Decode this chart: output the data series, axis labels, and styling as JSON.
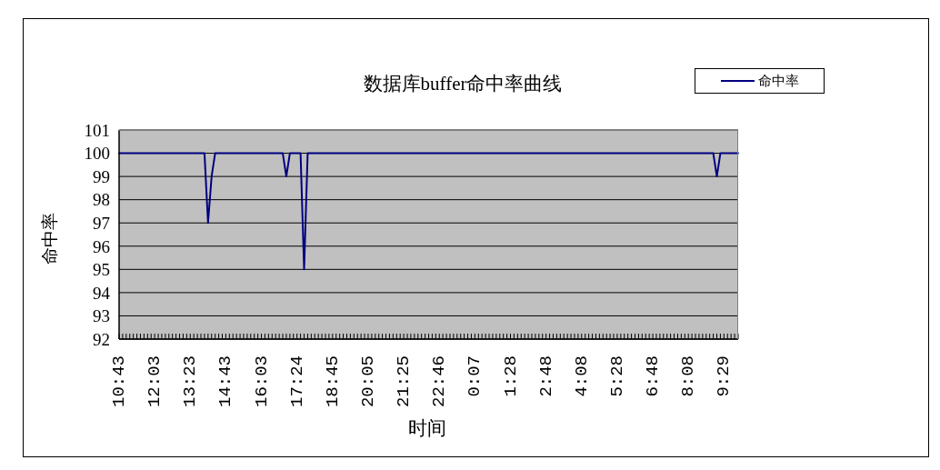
{
  "chart_data": {
    "type": "line",
    "title": "数据库buffer命中率曲线",
    "xlabel": "时间",
    "ylabel": "命中率",
    "categories": [
      "10:43",
      null,
      null,
      null,
      null,
      null,
      null,
      null,
      null,
      null,
      "12:03",
      null,
      null,
      null,
      null,
      null,
      null,
      null,
      null,
      null,
      "13:23",
      null,
      null,
      null,
      null,
      null,
      null,
      null,
      null,
      null,
      "14:43",
      null,
      null,
      null,
      null,
      null,
      null,
      null,
      null,
      null,
      "16:03",
      null,
      null,
      null,
      null,
      null,
      null,
      null,
      null,
      null,
      "17:24",
      null,
      null,
      null,
      null,
      null,
      null,
      null,
      null,
      null,
      "18:45",
      null,
      null,
      null,
      null,
      null,
      null,
      null,
      null,
      null,
      "20:05",
      null,
      null,
      null,
      null,
      null,
      null,
      null,
      null,
      null,
      "21:25",
      null,
      null,
      null,
      null,
      null,
      null,
      null,
      null,
      null,
      "22:46",
      null,
      null,
      null,
      null,
      null,
      null,
      null,
      null,
      null,
      "0:07",
      null,
      null,
      null,
      null,
      null,
      null,
      null,
      null,
      null,
      "1:28",
      null,
      null,
      null,
      null,
      null,
      null,
      null,
      null,
      null,
      "2:48",
      null,
      null,
      null,
      null,
      null,
      null,
      null,
      null,
      null,
      "4:08",
      null,
      null,
      null,
      null,
      null,
      null,
      null,
      null,
      null,
      "5:28",
      null,
      null,
      null,
      null,
      null,
      null,
      null,
      null,
      null,
      "6:48",
      null,
      null,
      null,
      null,
      null,
      null,
      null,
      null,
      null,
      "8:08",
      null,
      null,
      null,
      null,
      null,
      null,
      null,
      null,
      null,
      "9:29",
      null,
      null,
      null,
      null
    ],
    "series": [
      {
        "name": "命中率",
        "color": "#000080",
        "values": [
          100,
          100,
          100,
          100,
          100,
          100,
          100,
          100,
          100,
          100,
          100,
          100,
          100,
          100,
          100,
          100,
          100,
          100,
          100,
          100,
          100,
          100,
          100,
          100,
          100,
          97,
          99,
          100,
          100,
          100,
          100,
          100,
          100,
          100,
          100,
          100,
          100,
          100,
          100,
          100,
          100,
          100,
          100,
          100,
          100,
          100,
          100,
          99,
          100,
          100,
          100,
          100,
          95,
          100,
          100,
          100,
          100,
          100,
          100,
          100,
          100,
          100,
          100,
          100,
          100,
          100,
          100,
          100,
          100,
          100,
          100,
          100,
          100,
          100,
          100,
          100,
          100,
          100,
          100,
          100,
          100,
          100,
          100,
          100,
          100,
          100,
          100,
          100,
          100,
          100,
          100,
          100,
          100,
          100,
          100,
          100,
          100,
          100,
          100,
          100,
          100,
          100,
          100,
          100,
          100,
          100,
          100,
          100,
          100,
          100,
          100,
          100,
          100,
          100,
          100,
          100,
          100,
          100,
          100,
          100,
          100,
          100,
          100,
          100,
          100,
          100,
          100,
          100,
          100,
          100,
          100,
          100,
          100,
          100,
          100,
          100,
          100,
          100,
          100,
          100,
          100,
          100,
          100,
          100,
          100,
          100,
          100,
          100,
          100,
          100,
          100,
          100,
          100,
          100,
          100,
          100,
          100,
          100,
          100,
          100,
          100,
          100,
          100,
          100,
          100,
          100,
          100,
          100,
          99,
          100,
          100,
          100,
          100,
          100,
          100
        ]
      }
    ],
    "ylim": [
      92,
      101
    ],
    "yticks": [
      92,
      93,
      94,
      95,
      96,
      97,
      98,
      99,
      100,
      101
    ],
    "grid": "y",
    "legend": "top right",
    "marker": "none"
  }
}
